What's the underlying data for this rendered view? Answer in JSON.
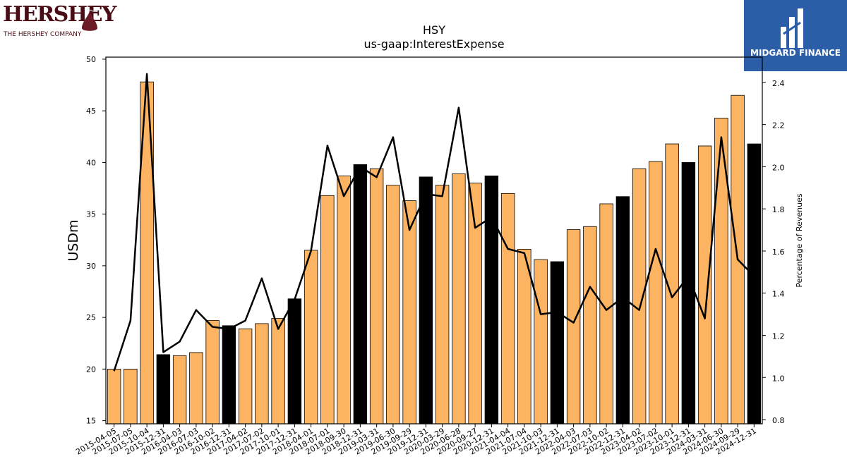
{
  "logos": {
    "left": {
      "word": "HERSHEY",
      "sub": "THE HERSHEY COMPANY"
    },
    "right": {
      "name": "MIDGARD FINANCE"
    }
  },
  "chart_data": {
    "type": "bar",
    "title": "HSY",
    "subtitle": "us-gaap:InterestExpense",
    "ylabel": "USDm",
    "y2label": "Percentage of Revenues",
    "ylim": [
      14.7,
      50.2
    ],
    "y2lim": [
      0.78,
      2.52
    ],
    "yticks": [
      15,
      20,
      25,
      30,
      35,
      40,
      45,
      50
    ],
    "y2ticks": [
      0.8,
      1.0,
      1.2,
      1.4,
      1.6,
      1.8,
      2.0,
      2.2,
      2.4
    ],
    "categories": [
      "2015-04-05",
      "2015-07-05",
      "2015-10-04",
      "2015-12-31",
      "2016-04-03",
      "2016-07-03",
      "2016-10-02",
      "2016-12-31",
      "2017-04-02",
      "2017-07-02",
      "2017-10-01",
      "2017-12-31",
      "2018-04-01",
      "2018-07-01",
      "2018-09-30",
      "2018-12-31",
      "2019-03-31",
      "2019-06-30",
      "2019-09-29",
      "2019-12-31",
      "2020-03-29",
      "2020-06-28",
      "2020-09-27",
      "2020-12-31",
      "2021-04-04",
      "2021-07-04",
      "2021-10-03",
      "2021-12-31",
      "2022-04-03",
      "2022-07-03",
      "2022-10-02",
      "2022-12-31",
      "2023-04-02",
      "2023-07-02",
      "2023-10-01",
      "2023-12-31",
      "2024-03-31",
      "2024-06-30",
      "2024-09-29",
      "2024-12-31"
    ],
    "series": [
      {
        "kind": "bar",
        "axis": "left",
        "values": [
          20.0,
          20.0,
          47.8,
          21.4,
          21.3,
          21.6,
          24.7,
          24.2,
          23.9,
          24.4,
          24.9,
          26.8,
          31.5,
          36.8,
          38.7,
          39.8,
          39.4,
          37.8,
          36.3,
          38.6,
          37.8,
          38.9,
          38.0,
          38.7,
          37.0,
          31.6,
          30.6,
          30.4,
          33.5,
          33.8,
          36.0,
          36.7,
          39.4,
          40.1,
          41.8,
          40.0,
          41.6,
          44.3,
          46.5,
          41.8
        ],
        "colors": [
          "#fdb462",
          "#fdb462",
          "#fdb462",
          "#000000",
          "#fdb462",
          "#fdb462",
          "#fdb462",
          "#000000",
          "#fdb462",
          "#fdb462",
          "#fdb462",
          "#000000",
          "#fdb462",
          "#fdb462",
          "#fdb462",
          "#000000",
          "#fdb462",
          "#fdb462",
          "#fdb462",
          "#000000",
          "#fdb462",
          "#fdb462",
          "#fdb462",
          "#000000",
          "#fdb462",
          "#fdb462",
          "#fdb462",
          "#000000",
          "#fdb462",
          "#fdb462",
          "#fdb462",
          "#000000",
          "#fdb462",
          "#fdb462",
          "#fdb462",
          "#000000",
          "#fdb462",
          "#fdb462",
          "#fdb462",
          "#000000"
        ]
      },
      {
        "kind": "line",
        "axis": "right",
        "color": "#000000",
        "values": [
          1.03,
          1.27,
          2.44,
          1.12,
          1.17,
          1.32,
          1.24,
          1.23,
          1.27,
          1.47,
          1.23,
          1.37,
          1.6,
          2.1,
          1.86,
          2.0,
          1.95,
          2.14,
          1.7,
          1.87,
          1.86,
          2.28,
          1.71,
          1.76,
          1.61,
          1.59,
          1.3,
          1.31,
          1.26,
          1.43,
          1.32,
          1.38,
          1.32,
          1.61,
          1.38,
          1.48,
          1.28,
          2.14,
          1.56,
          1.48
        ]
      }
    ]
  }
}
